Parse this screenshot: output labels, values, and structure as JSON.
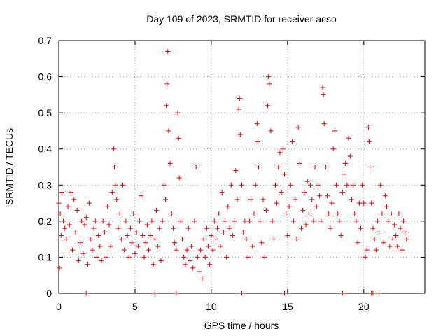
{
  "chart_data": {
    "type": "scatter",
    "title": "Day 109 of 2023, SRMTID for receiver acso",
    "xlabel": "GPS time / hours",
    "ylabel": "SRMTID / TECUs",
    "xlim": [
      0,
      24
    ],
    "ylim": [
      0,
      0.7
    ],
    "xticks": [
      0,
      5,
      10,
      15,
      20
    ],
    "yticks": [
      0,
      0.1,
      0.2,
      0.3,
      0.4,
      0.5,
      0.6,
      0.7
    ],
    "xtick_labels": [
      "0",
      "5",
      "10",
      "15",
      "20"
    ],
    "ytick_labels": [
      "0",
      "0.1",
      "0.2",
      "0.3",
      "0.4",
      "0.5",
      "0.6",
      "0.7"
    ],
    "grid": true,
    "marker": "+",
    "color": "#e00000",
    "series": [
      {
        "name": "SRMTID",
        "points": [
          [
            0.0,
            0.25
          ],
          [
            0.05,
            0.07
          ],
          [
            0.1,
            0.22
          ],
          [
            0.15,
            0.16
          ],
          [
            0.2,
            0.28
          ],
          [
            0.3,
            0.2
          ],
          [
            0.4,
            0.18
          ],
          [
            0.5,
            0.15
          ],
          [
            0.6,
            0.24
          ],
          [
            0.7,
            0.19
          ],
          [
            0.8,
            0.28
          ],
          [
            0.9,
            0.12
          ],
          [
            1.0,
            0.26
          ],
          [
            1.1,
            0.17
          ],
          [
            1.2,
            0.23
          ],
          [
            1.3,
            0.09
          ],
          [
            1.4,
            0.14
          ],
          [
            1.5,
            0.2
          ],
          [
            1.6,
            0.11
          ],
          [
            1.7,
            0.19
          ],
          [
            1.8,
            0.21
          ],
          [
            1.9,
            0.08
          ],
          [
            2.0,
            0.25
          ],
          [
            2.1,
            0.15
          ],
          [
            2.2,
            0.12
          ],
          [
            2.3,
            0.18
          ],
          [
            2.4,
            0.2
          ],
          [
            2.5,
            0.1
          ],
          [
            2.6,
            0.16
          ],
          [
            2.7,
            0.13
          ],
          [
            2.8,
            0.09
          ],
          [
            2.9,
            0.2
          ],
          [
            3.0,
            0.17
          ],
          [
            3.1,
            0.1
          ],
          [
            3.2,
            0.24
          ],
          [
            3.3,
            0.19
          ],
          [
            3.4,
            0.13
          ],
          [
            3.5,
            0.28
          ],
          [
            3.6,
            0.4
          ],
          [
            3.65,
            0.35
          ],
          [
            3.7,
            0.3
          ],
          [
            3.8,
            0.26
          ],
          [
            3.9,
            0.18
          ],
          [
            4.0,
            0.22
          ],
          [
            4.1,
            0.15
          ],
          [
            4.2,
            0.3
          ],
          [
            4.3,
            0.12
          ],
          [
            4.4,
            0.2
          ],
          [
            4.5,
            0.16
          ],
          [
            4.6,
            0.1
          ],
          [
            4.7,
            0.18
          ],
          [
            4.8,
            0.14
          ],
          [
            4.9,
            0.22
          ],
          [
            5.0,
            0.11
          ],
          [
            5.1,
            0.17
          ],
          [
            5.2,
            0.13
          ],
          [
            5.3,
            0.2
          ],
          [
            5.4,
            0.27
          ],
          [
            5.5,
            0.16
          ],
          [
            5.6,
            0.1
          ],
          [
            5.7,
            0.14
          ],
          [
            5.8,
            0.19
          ],
          [
            5.9,
            0.12
          ],
          [
            6.0,
            0.16
          ],
          [
            6.1,
            0.2
          ],
          [
            6.2,
            0.08
          ],
          [
            6.3,
            0.15
          ],
          [
            6.4,
            0.23
          ],
          [
            6.5,
            0.13
          ],
          [
            6.6,
            0.18
          ],
          [
            6.7,
            0.09
          ],
          [
            6.8,
            0.2
          ],
          [
            6.9,
            0.3
          ],
          [
            7.0,
            0.26
          ],
          [
            7.05,
            0.52
          ],
          [
            7.1,
            0.58
          ],
          [
            7.15,
            0.67
          ],
          [
            7.2,
            0.45
          ],
          [
            7.3,
            0.36
          ],
          [
            7.4,
            0.22
          ],
          [
            7.5,
            0.18
          ],
          [
            7.6,
            0.14
          ],
          [
            7.7,
            0.12
          ],
          [
            7.8,
            0.5
          ],
          [
            7.85,
            0.43
          ],
          [
            7.9,
            0.32
          ],
          [
            8.0,
            0.2
          ],
          [
            8.1,
            0.15
          ],
          [
            8.2,
            0.1
          ],
          [
            8.3,
            0.08
          ],
          [
            8.4,
            0.12
          ],
          [
            8.5,
            0.18
          ],
          [
            8.6,
            0.09
          ],
          [
            8.7,
            0.13
          ],
          [
            8.8,
            0.07
          ],
          [
            8.9,
            0.2
          ],
          [
            9.0,
            0.35
          ],
          [
            9.1,
            0.1
          ],
          [
            9.2,
            0.06
          ],
          [
            9.3,
            0.12
          ],
          [
            9.4,
            0.04
          ],
          [
            9.5,
            0.15
          ],
          [
            9.6,
            0.1
          ],
          [
            9.7,
            0.18
          ],
          [
            9.8,
            0.13
          ],
          [
            9.9,
            0.08
          ],
          [
            10.0,
            0.16
          ],
          [
            10.1,
            0.12
          ],
          [
            10.2,
            0.2
          ],
          [
            10.3,
            0.15
          ],
          [
            10.4,
            0.18
          ],
          [
            10.5,
            0.22
          ],
          [
            10.6,
            0.13
          ],
          [
            10.7,
            0.28
          ],
          [
            10.8,
            0.17
          ],
          [
            10.9,
            0.2
          ],
          [
            11.0,
            0.1
          ],
          [
            11.1,
            0.24
          ],
          [
            11.2,
            0.18
          ],
          [
            11.3,
            0.3
          ],
          [
            11.4,
            0.16
          ],
          [
            11.5,
            0.2
          ],
          [
            11.6,
            0.34
          ],
          [
            11.7,
            0.26
          ],
          [
            11.8,
            0.51
          ],
          [
            11.85,
            0.54
          ],
          [
            11.9,
            0.44
          ],
          [
            12.0,
            0.3
          ],
          [
            12.1,
            0.17
          ],
          [
            12.2,
            0.2
          ],
          [
            12.3,
            0.15
          ],
          [
            12.4,
            0.1
          ],
          [
            12.5,
            0.2
          ],
          [
            12.6,
            0.26
          ],
          [
            12.7,
            0.13
          ],
          [
            12.8,
            0.22
          ],
          [
            12.9,
            0.3
          ],
          [
            13.0,
            0.47
          ],
          [
            13.05,
            0.42
          ],
          [
            13.1,
            0.35
          ],
          [
            13.2,
            0.2
          ],
          [
            13.3,
            0.14
          ],
          [
            13.4,
            0.26
          ],
          [
            13.5,
            0.1
          ],
          [
            13.6,
            0.23
          ],
          [
            13.7,
            0.52
          ],
          [
            13.75,
            0.6
          ],
          [
            13.8,
            0.58
          ],
          [
            13.9,
            0.45
          ],
          [
            14.0,
            0.2
          ],
          [
            14.1,
            0.15
          ],
          [
            14.2,
            0.3
          ],
          [
            14.3,
            0.25
          ],
          [
            14.4,
            0.35
          ],
          [
            14.5,
            0.39
          ],
          [
            14.6,
            0.28
          ],
          [
            14.7,
            0.4
          ],
          [
            14.8,
            0.33
          ],
          [
            14.9,
            0.22
          ],
          [
            15.0,
            0.16
          ],
          [
            15.1,
            0.24
          ],
          [
            15.2,
            0.3
          ],
          [
            15.3,
            0.42
          ],
          [
            15.4,
            0.2
          ],
          [
            15.5,
            0.26
          ],
          [
            15.6,
            0.15
          ],
          [
            15.7,
            0.46
          ],
          [
            15.8,
            0.36
          ],
          [
            15.9,
            0.18
          ],
          [
            16.0,
            0.23
          ],
          [
            16.1,
            0.28
          ],
          [
            16.2,
            0.19
          ],
          [
            16.3,
            0.31
          ],
          [
            16.4,
            0.22
          ],
          [
            16.5,
            0.3
          ],
          [
            16.6,
            0.26
          ],
          [
            16.7,
            0.2
          ],
          [
            16.8,
            0.35
          ],
          [
            16.9,
            0.24
          ],
          [
            17.0,
            0.3
          ],
          [
            17.1,
            0.27
          ],
          [
            17.2,
            0.2
          ],
          [
            17.3,
            0.57
          ],
          [
            17.35,
            0.55
          ],
          [
            17.4,
            0.47
          ],
          [
            17.5,
            0.35
          ],
          [
            17.6,
            0.27
          ],
          [
            17.7,
            0.22
          ],
          [
            17.8,
            0.18
          ],
          [
            17.9,
            0.25
          ],
          [
            18.0,
            0.4
          ],
          [
            18.1,
            0.45
          ],
          [
            18.2,
            0.3
          ],
          [
            18.3,
            0.22
          ],
          [
            18.4,
            0.2
          ],
          [
            18.5,
            0.16
          ],
          [
            18.6,
            0.28
          ],
          [
            18.7,
            0.33
          ],
          [
            18.8,
            0.36
          ],
          [
            18.9,
            0.3
          ],
          [
            19.0,
            0.43
          ],
          [
            19.1,
            0.38
          ],
          [
            19.2,
            0.26
          ],
          [
            19.3,
            0.3
          ],
          [
            19.4,
            0.22
          ],
          [
            19.5,
            0.2
          ],
          [
            19.6,
            0.14
          ],
          [
            19.7,
            0.25
          ],
          [
            19.8,
            0.18
          ],
          [
            19.9,
            0.3
          ],
          [
            20.0,
            0.25
          ],
          [
            20.1,
            0.1
          ],
          [
            20.2,
            0.12
          ],
          [
            20.3,
            0.46
          ],
          [
            20.35,
            0.42
          ],
          [
            20.4,
            0.35
          ],
          [
            20.5,
            0.25
          ],
          [
            20.6,
            0.18
          ],
          [
            20.7,
            0.15
          ],
          [
            20.8,
            0.12
          ],
          [
            20.9,
            0.2
          ],
          [
            21.0,
            0.17
          ],
          [
            21.1,
            0.3
          ],
          [
            21.2,
            0.22
          ],
          [
            21.3,
            0.14
          ],
          [
            21.4,
            0.27
          ],
          [
            21.5,
            0.24
          ],
          [
            21.6,
            0.2
          ],
          [
            21.7,
            0.13
          ],
          [
            21.8,
            0.22
          ],
          [
            21.9,
            0.15
          ],
          [
            22.0,
            0.19
          ],
          [
            22.1,
            0.16
          ],
          [
            22.2,
            0.13
          ],
          [
            22.3,
            0.22
          ],
          [
            22.4,
            0.18
          ],
          [
            22.5,
            0.12
          ],
          [
            22.6,
            0.2
          ],
          [
            22.7,
            0.17
          ],
          [
            22.8,
            0.15
          ]
        ]
      },
      {
        "name": "SRMTID zero values",
        "points": [
          [
            1.8,
            0
          ],
          [
            6.3,
            0
          ],
          [
            7.7,
            0
          ],
          [
            12.0,
            0
          ],
          [
            14.8,
            0
          ],
          [
            18.6,
            0
          ],
          [
            20.5,
            0
          ],
          [
            20.6,
            0
          ],
          [
            21.0,
            0
          ]
        ]
      }
    ]
  }
}
